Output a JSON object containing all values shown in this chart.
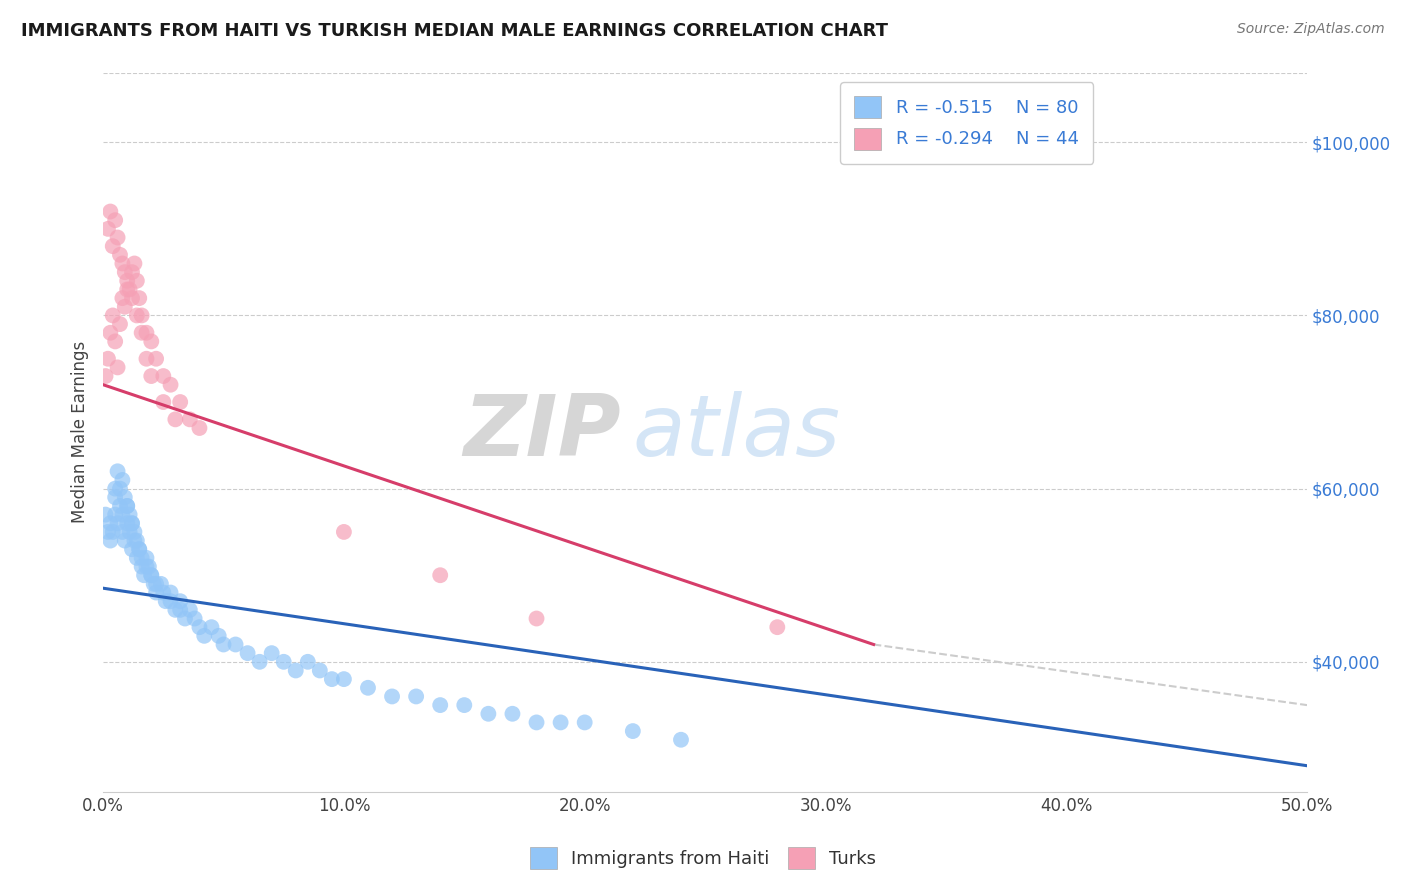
{
  "title": "IMMIGRANTS FROM HAITI VS TURKISH MEDIAN MALE EARNINGS CORRELATION CHART",
  "source": "Source: ZipAtlas.com",
  "ylabel": "Median Male Earnings",
  "xlim": [
    0.0,
    0.5
  ],
  "ylim": [
    25000,
    108000
  ],
  "xtick_labels": [
    "0.0%",
    "10.0%",
    "20.0%",
    "30.0%",
    "40.0%",
    "50.0%"
  ],
  "xtick_vals": [
    0.0,
    0.1,
    0.2,
    0.3,
    0.4,
    0.5
  ],
  "ytick_vals": [
    40000,
    60000,
    80000,
    100000
  ],
  "ytick_labels": [
    "$40,000",
    "$60,000",
    "$80,000",
    "$100,000"
  ],
  "haiti_color": "#92c5f7",
  "turks_color": "#f5a0b5",
  "haiti_line_color": "#2962b8",
  "turks_line_color": "#d63d6a",
  "dashed_line_color": "#cccccc",
  "watermark_zip": "ZIP",
  "watermark_atlas": "atlas",
  "legend_haiti_label": "Immigrants from Haiti",
  "legend_turks_label": "Turks",
  "haiti_R": -0.515,
  "haiti_N": 80,
  "turks_R": -0.294,
  "turks_N": 44,
  "haiti_line_x0": 0.0,
  "haiti_line_y0": 48500,
  "haiti_line_x1": 0.5,
  "haiti_line_y1": 28000,
  "turks_line_x0": 0.0,
  "turks_line_y0": 72000,
  "turks_line_x1": 0.32,
  "turks_line_y1": 42000,
  "dashed_line_x0": 0.32,
  "dashed_line_y0": 42000,
  "dashed_line_x1": 0.5,
  "dashed_line_y1": 35000,
  "haiti_scatter_x": [
    0.001,
    0.002,
    0.003,
    0.003,
    0.004,
    0.005,
    0.005,
    0.006,
    0.007,
    0.008,
    0.008,
    0.009,
    0.01,
    0.01,
    0.011,
    0.012,
    0.012,
    0.013,
    0.014,
    0.015,
    0.016,
    0.017,
    0.018,
    0.019,
    0.02,
    0.021,
    0.022,
    0.024,
    0.026,
    0.028,
    0.03,
    0.032,
    0.034,
    0.036,
    0.038,
    0.04,
    0.042,
    0.045,
    0.048,
    0.05,
    0.055,
    0.06,
    0.065,
    0.07,
    0.075,
    0.08,
    0.085,
    0.09,
    0.095,
    0.1,
    0.11,
    0.12,
    0.13,
    0.14,
    0.15,
    0.16,
    0.17,
    0.18,
    0.19,
    0.2,
    0.22,
    0.24,
    0.005,
    0.006,
    0.007,
    0.008,
    0.009,
    0.01,
    0.011,
    0.012,
    0.013,
    0.014,
    0.015,
    0.016,
    0.018,
    0.02,
    0.022,
    0.025,
    0.028,
    0.032
  ],
  "haiti_scatter_y": [
    57000,
    55000,
    54000,
    56000,
    55000,
    57000,
    59000,
    56000,
    58000,
    57000,
    55000,
    54000,
    56000,
    58000,
    55000,
    53000,
    56000,
    54000,
    52000,
    53000,
    51000,
    50000,
    52000,
    51000,
    50000,
    49000,
    48000,
    49000,
    47000,
    48000,
    46000,
    47000,
    45000,
    46000,
    45000,
    44000,
    43000,
    44000,
    43000,
    42000,
    42000,
    41000,
    40000,
    41000,
    40000,
    39000,
    40000,
    39000,
    38000,
    38000,
    37000,
    36000,
    36000,
    35000,
    35000,
    34000,
    34000,
    33000,
    33000,
    33000,
    32000,
    31000,
    60000,
    62000,
    60000,
    61000,
    59000,
    58000,
    57000,
    56000,
    55000,
    54000,
    53000,
    52000,
    51000,
    50000,
    49000,
    48000,
    47000,
    46000
  ],
  "turks_scatter_x": [
    0.001,
    0.002,
    0.003,
    0.004,
    0.005,
    0.006,
    0.007,
    0.008,
    0.009,
    0.01,
    0.011,
    0.012,
    0.013,
    0.014,
    0.015,
    0.016,
    0.018,
    0.02,
    0.022,
    0.025,
    0.028,
    0.032,
    0.036,
    0.04,
    0.002,
    0.003,
    0.004,
    0.005,
    0.006,
    0.007,
    0.008,
    0.009,
    0.01,
    0.012,
    0.014,
    0.016,
    0.018,
    0.02,
    0.025,
    0.03,
    0.1,
    0.14,
    0.18,
    0.28
  ],
  "turks_scatter_y": [
    73000,
    75000,
    78000,
    80000,
    77000,
    74000,
    79000,
    82000,
    81000,
    84000,
    83000,
    85000,
    86000,
    84000,
    82000,
    80000,
    78000,
    77000,
    75000,
    73000,
    72000,
    70000,
    68000,
    67000,
    90000,
    92000,
    88000,
    91000,
    89000,
    87000,
    86000,
    85000,
    83000,
    82000,
    80000,
    78000,
    75000,
    73000,
    70000,
    68000,
    55000,
    50000,
    45000,
    44000
  ]
}
